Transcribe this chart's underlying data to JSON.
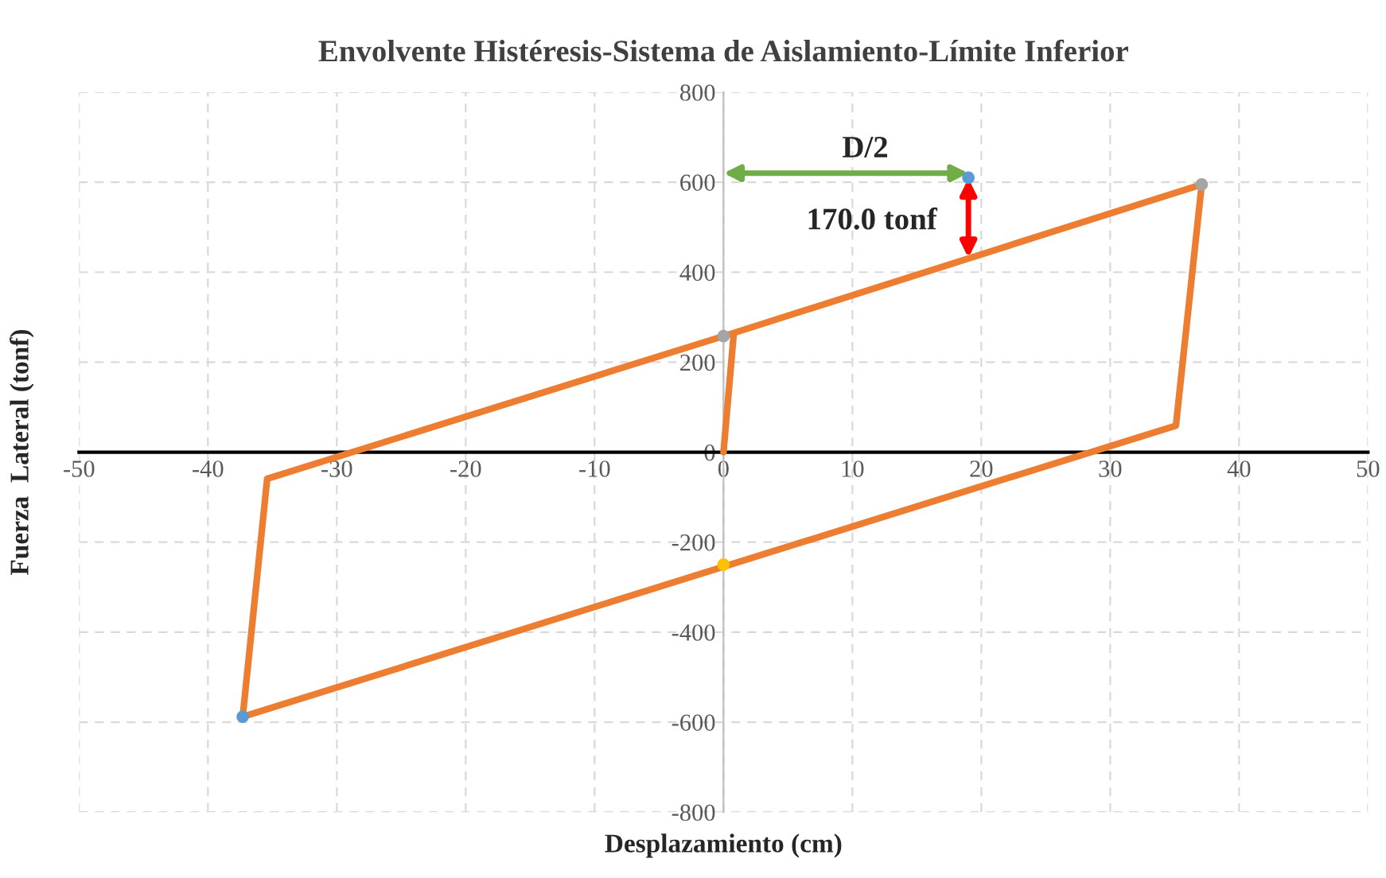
{
  "chart_data": {
    "type": "line",
    "title": "Envolvente Histéresis-Sistema de Aislamiento-Límite Inferior",
    "xlabel": "Desplazamiento (cm)",
    "ylabel": "Fuerza  Lateral (tonf)",
    "xlim": [
      -50,
      50
    ],
    "xticks": [
      -50,
      -40,
      -30,
      -20,
      -10,
      0,
      10,
      20,
      30,
      40,
      50
    ],
    "ylim": [
      -800,
      800
    ],
    "yticks": [
      -800,
      -600,
      -400,
      -200,
      0,
      200,
      400,
      600,
      800
    ],
    "grid": true,
    "line_style": "solid",
    "series": [
      {
        "color": "#ed7d31",
        "x": [
          0,
          0.8,
          37.1,
          35.1,
          -37.3,
          -35.4,
          0.8
        ],
        "values": [
          0,
          265,
          595,
          59,
          -588,
          -59,
          265
        ]
      },
      {
        "type": "scatter",
        "x": [
          0,
          0,
          19,
          -37.3,
          37.1
        ],
        "values": [
          258,
          -250,
          610,
          -588,
          595
        ],
        "colors": [
          "#a5a5a5",
          "#ffc000",
          "#5b9bd5",
          "#5b9bd5",
          "#a5a5a5"
        ]
      }
    ],
    "annotations": [
      "D/2",
      "170.0 tonf"
    ]
  }
}
